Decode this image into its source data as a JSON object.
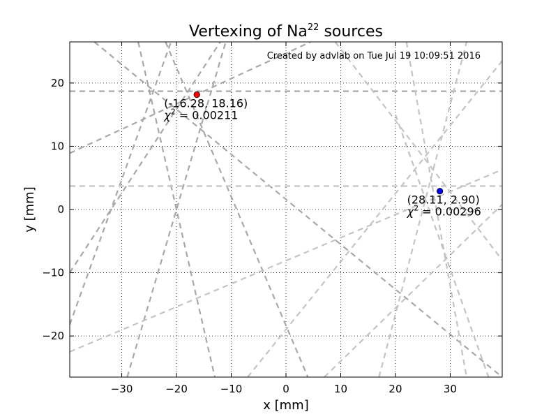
{
  "chart_data": {
    "type": "line",
    "title": "Vertexing of Na",
    "title_superscript": "22",
    "title_suffix": " sources",
    "credit": "Created by advlab on Tue Jul 19 10:09:51 2016",
    "xlabel": "x [mm]",
    "ylabel": "y [mm]",
    "xlim": [
      -39.5,
      39.5
    ],
    "ylim": [
      -26.5,
      26.5
    ],
    "xticks": [
      -30,
      -20,
      -10,
      0,
      10,
      20,
      30
    ],
    "yticks": [
      -20,
      -10,
      0,
      10,
      20
    ],
    "xtick_labels": [
      "−30",
      "−20",
      "−10",
      "0",
      "10",
      "20",
      "30"
    ],
    "ytick_labels": [
      "−20",
      "−10",
      "0",
      "10",
      "20"
    ],
    "grid": true,
    "tracks": [
      {
        "group": "source-1",
        "color": "#a8a8a8",
        "points": [
          [
            -39.5,
            18.7
          ],
          [
            39.5,
            18.7
          ]
        ]
      },
      {
        "group": "source-1",
        "color": "#a8a8a8",
        "points": [
          [
            -39.5,
            8.9
          ],
          [
            4.5,
            26.5
          ]
        ]
      },
      {
        "group": "source-1",
        "color": "#a8a8a8",
        "points": [
          [
            -39.5,
            -10.0
          ],
          [
            -12.0,
            26.5
          ]
        ]
      },
      {
        "group": "source-1",
        "color": "#a8a8a8",
        "points": [
          [
            -39.5,
            -18.2
          ],
          [
            -21.0,
            26.5
          ]
        ]
      },
      {
        "group": "source-1",
        "color": "#a8a8a8",
        "points": [
          [
            -29.0,
            -26.5
          ],
          [
            -11.0,
            26.5
          ]
        ]
      },
      {
        "group": "source-1",
        "color": "#a8a8a8",
        "points": [
          [
            -27.0,
            26.5
          ],
          [
            -13.0,
            -26.5
          ]
        ]
      },
      {
        "group": "source-1",
        "color": "#a8a8a8",
        "points": [
          [
            -22.0,
            26.5
          ],
          [
            4.0,
            -26.5
          ]
        ]
      },
      {
        "group": "source-1",
        "color": "#a8a8a8",
        "points": [
          [
            -35.0,
            26.5
          ],
          [
            39.5,
            -26.5
          ]
        ]
      },
      {
        "group": "source-2",
        "color": "#c4c4c4",
        "points": [
          [
            -39.5,
            3.7
          ],
          [
            39.5,
            3.7
          ]
        ]
      },
      {
        "group": "source-2",
        "color": "#c4c4c4",
        "points": [
          [
            -39.5,
            -22.5
          ],
          [
            39.5,
            6.3
          ]
        ]
      },
      {
        "group": "source-2",
        "color": "#c4c4c4",
        "points": [
          [
            -7.0,
            -26.5
          ],
          [
            39.5,
            23.5
          ]
        ]
      },
      {
        "group": "source-2",
        "color": "#c4c4c4",
        "points": [
          [
            7.0,
            -26.5
          ],
          [
            39.5,
            0.8
          ]
        ]
      },
      {
        "group": "source-2",
        "color": "#c4c4c4",
        "points": [
          [
            17.0,
            -26.5
          ],
          [
            33.0,
            26.5
          ]
        ]
      },
      {
        "group": "source-2",
        "color": "#c4c4c4",
        "points": [
          [
            22.0,
            26.5
          ],
          [
            33.0,
            -26.5
          ]
        ]
      },
      {
        "group": "source-2",
        "color": "#c4c4c4",
        "points": [
          [
            9.0,
            26.5
          ],
          [
            39.5,
            -8.0
          ]
        ]
      },
      {
        "group": "source-2",
        "color": "#c4c4c4",
        "points": [
          [
            20.0,
            15.0
          ],
          [
            37.0,
            -26.5
          ]
        ]
      }
    ],
    "vertices": [
      {
        "x": -16.28,
        "y": 18.16,
        "color": "#ff0000",
        "label": "(-16.28, 18.16)",
        "chi_symbol": "χ",
        "chi_power": "2",
        "chi_rest": " = 0.00211"
      },
      {
        "x": 28.11,
        "y": 2.9,
        "color": "#0000ff",
        "label": "(28.11, 2.90)",
        "chi_symbol": "χ",
        "chi_power": "2",
        "chi_rest": " = 0.00296"
      }
    ]
  }
}
